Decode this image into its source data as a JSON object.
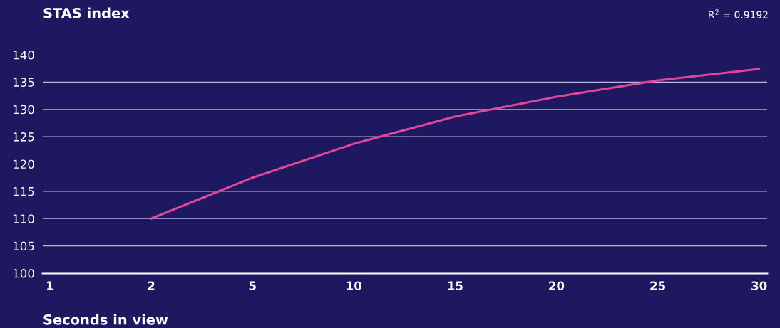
{
  "chart_data": {
    "type": "line",
    "title": "STAS index",
    "xlabel": "Seconds in view",
    "annotations": [
      "R$^{2}$ = 0.9192"
    ],
    "categories": [
      "1",
      "2",
      "5",
      "10",
      "15",
      "20",
      "25",
      "30"
    ],
    "series": [
      {
        "color": "#e0469a",
        "values": [
          null,
          110,
          117.5,
          123.7,
          128.7,
          132.3,
          135.3,
          137.4
        ]
      }
    ],
    "ylim": [
      100,
      140
    ],
    "yticks": [
      100,
      105,
      110,
      115,
      120,
      125,
      130,
      135,
      140
    ],
    "grid": "y",
    "marker": "none",
    "line_style": "solid",
    "legend": false
  }
}
